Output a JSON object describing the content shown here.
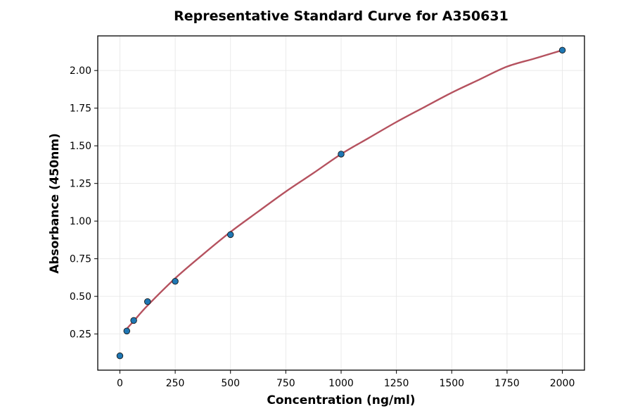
{
  "chart_data": {
    "type": "scatter",
    "title": "Representative Standard Curve for A350631",
    "xlabel": "Concentration (ng/ml)",
    "ylabel": "Absorbance (450nm)",
    "xlim": [
      -100,
      2100
    ],
    "ylim": [
      0.01,
      2.23
    ],
    "xticks": [
      0,
      250,
      500,
      750,
      1000,
      1250,
      1500,
      1750,
      2000
    ],
    "yticks": [
      0.25,
      0.5,
      0.75,
      1.0,
      1.25,
      1.5,
      1.75,
      2.0
    ],
    "xtick_labels": [
      "0",
      "250",
      "500",
      "750",
      "1000",
      "1250",
      "1500",
      "1750",
      "2000"
    ],
    "ytick_labels": [
      "0.25",
      "0.50",
      "0.75",
      "1.00",
      "1.25",
      "1.50",
      "1.75",
      "2.00"
    ],
    "grid": true,
    "series": [
      {
        "kind": "points",
        "x": [
          0,
          31.25,
          62.5,
          125,
          250,
          500,
          1000,
          2000
        ],
        "y": [
          0.105,
          0.27,
          0.34,
          0.465,
          0.6,
          0.91,
          1.445,
          2.135
        ],
        "color": "#1f77b4"
      },
      {
        "kind": "fit-curve",
        "x": [
          31.25,
          62.5,
          125,
          250,
          375,
          500,
          625,
          750,
          875,
          1000,
          1125,
          1250,
          1375,
          1500,
          1625,
          1750,
          1875,
          2000
        ],
        "y": [
          0.285,
          0.336,
          0.439,
          0.62,
          0.778,
          0.928,
          1.063,
          1.196,
          1.319,
          1.445,
          1.552,
          1.658,
          1.756,
          1.853,
          1.94,
          2.026,
          2.08,
          2.135
        ],
        "color": "#b5525f"
      }
    ]
  }
}
